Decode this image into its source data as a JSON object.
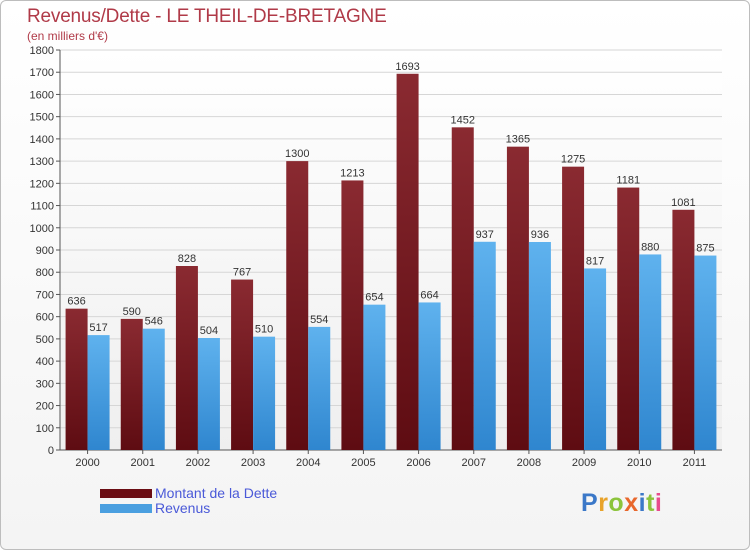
{
  "chart_data": {
    "type": "bar",
    "title": "Revenus/Dette - LE THEIL-DE-BRETAGNE",
    "subtitle": "(en milliers d'€)",
    "categories": [
      "2000",
      "2001",
      "2002",
      "2003",
      "2004",
      "2005",
      "2006",
      "2007",
      "2008",
      "2009",
      "2010",
      "2011"
    ],
    "series": [
      {
        "name": "Montant de la Dette",
        "color": "#7a1a22",
        "values": [
          636,
          590,
          828,
          767,
          1300,
          1213,
          1693,
          1452,
          1365,
          1275,
          1181,
          1081
        ]
      },
      {
        "name": "Revenus",
        "color": "#4a9fe0",
        "values": [
          517,
          546,
          504,
          510,
          554,
          654,
          664,
          937,
          936,
          817,
          880,
          875
        ]
      }
    ],
    "ylim": [
      0,
      1800
    ],
    "yticks": [
      0,
      100,
      200,
      300,
      400,
      500,
      600,
      700,
      800,
      900,
      1000,
      1100,
      1200,
      1300,
      1400,
      1500,
      1600,
      1700,
      1800
    ],
    "grid": true,
    "legend": "bottom-left"
  },
  "logo": {
    "text": "Proxiti"
  }
}
